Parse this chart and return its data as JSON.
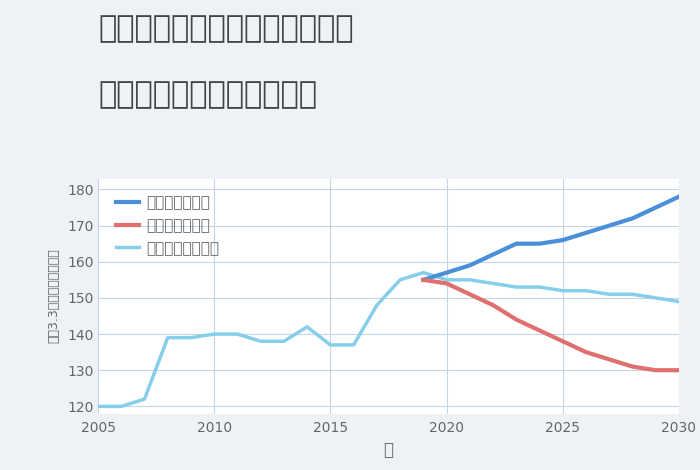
{
  "title_line1": "神奈川県横浜市緑区東本郷町の",
  "title_line2": "中古マンションの価格推移",
  "xlabel": "年",
  "ylabel_chars": [
    "平",
    "（",
    "3",
    ".",
    "3",
    "㎡",
    "）",
    "単",
    "価",
    "（",
    "万",
    "円",
    "）"
  ],
  "xlim": [
    2005,
    2030
  ],
  "ylim": [
    118,
    183
  ],
  "yticks": [
    120,
    130,
    140,
    150,
    160,
    170,
    180
  ],
  "xticks": [
    2005,
    2010,
    2015,
    2020,
    2025,
    2030
  ],
  "bg_color": "#eef2f7",
  "plot_bg_color": "#ffffff",
  "grid_color": "#c5d5e5",
  "normal_scenario": {
    "x": [
      2005,
      2006,
      2007,
      2008,
      2009,
      2010,
      2011,
      2012,
      2013,
      2014,
      2015,
      2016,
      2017,
      2018,
      2019,
      2020,
      2021,
      2022,
      2023,
      2024,
      2025,
      2026,
      2027,
      2028,
      2029,
      2030
    ],
    "y": [
      120,
      120,
      122,
      139,
      139,
      140,
      140,
      138,
      138,
      142,
      137,
      137,
      148,
      155,
      157,
      155,
      155,
      154,
      153,
      153,
      152,
      152,
      151,
      151,
      150,
      149
    ],
    "color": "#87CEEB",
    "linewidth": 2.5,
    "label": "ノーマルシナリオ"
  },
  "good_scenario": {
    "x": [
      2019,
      2020,
      2021,
      2022,
      2023,
      2024,
      2025,
      2026,
      2027,
      2028,
      2029,
      2030
    ],
    "y": [
      155,
      157,
      159,
      162,
      165,
      165,
      166,
      168,
      170,
      172,
      175,
      178
    ],
    "color": "#4a90d9",
    "linewidth": 3.0,
    "label": "グッドシナリオ"
  },
  "bad_scenario": {
    "x": [
      2019,
      2020,
      2021,
      2022,
      2023,
      2024,
      2025,
      2026,
      2027,
      2028,
      2029,
      2030
    ],
    "y": [
      155,
      154,
      151,
      148,
      144,
      141,
      138,
      135,
      133,
      131,
      130,
      130
    ],
    "color": "#e07070",
    "linewidth": 3.0,
    "label": "バッドシナリオ"
  },
  "title_color": "#444444",
  "title_fontsize": 22,
  "axis_label_color": "#666666",
  "tick_color": "#666666",
  "legend_fontsize": 11
}
